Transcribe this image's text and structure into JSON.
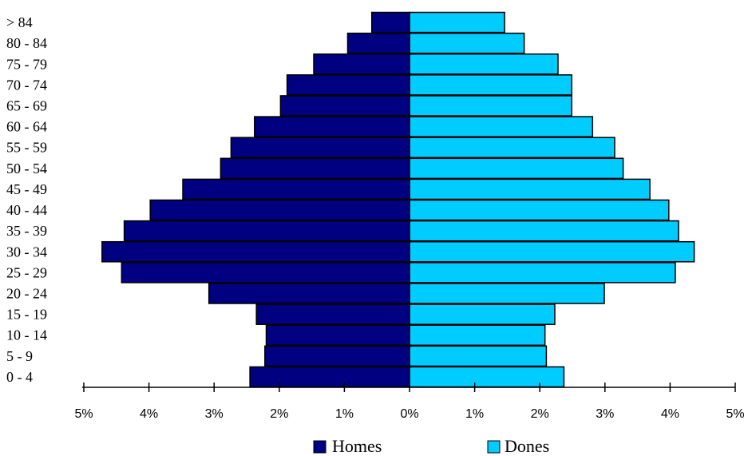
{
  "chart_data": {
    "type": "bar",
    "orientation": "horizontal",
    "layout": "population-pyramid",
    "categories": [
      "0 - 4",
      "5 - 9",
      "10 - 14",
      "15 - 19",
      "20 - 24",
      "25 - 29",
      "30 - 34",
      "35 - 39",
      "40 - 44",
      "45 - 49",
      "50 - 54",
      "55 - 59",
      "60 - 64",
      "65 - 69",
      "70 - 74",
      "75 - 79",
      "80 - 84",
      "> 84"
    ],
    "series": [
      {
        "name": "Homes",
        "side": "left",
        "color": "#000080",
        "values": [
          2.45,
          2.22,
          2.2,
          2.35,
          3.08,
          4.42,
          4.72,
          4.38,
          3.98,
          3.48,
          2.9,
          2.74,
          2.38,
          1.98,
          1.88,
          1.47,
          0.95,
          0.58
        ]
      },
      {
        "name": "Dones",
        "side": "right",
        "color": "#00ccff",
        "values": [
          2.37,
          2.1,
          2.08,
          2.23,
          2.99,
          4.08,
          4.37,
          4.13,
          3.98,
          3.69,
          3.28,
          3.15,
          2.81,
          2.49,
          2.49,
          2.28,
          1.76,
          1.46
        ]
      }
    ],
    "x_ticks": [
      "5%",
      "4%",
      "3%",
      "2%",
      "1%",
      "0%",
      "1%",
      "2%",
      "3%",
      "4%",
      "5%"
    ],
    "xlim": [
      -5,
      5
    ],
    "legend_position": "bottom-center",
    "grid": false
  }
}
